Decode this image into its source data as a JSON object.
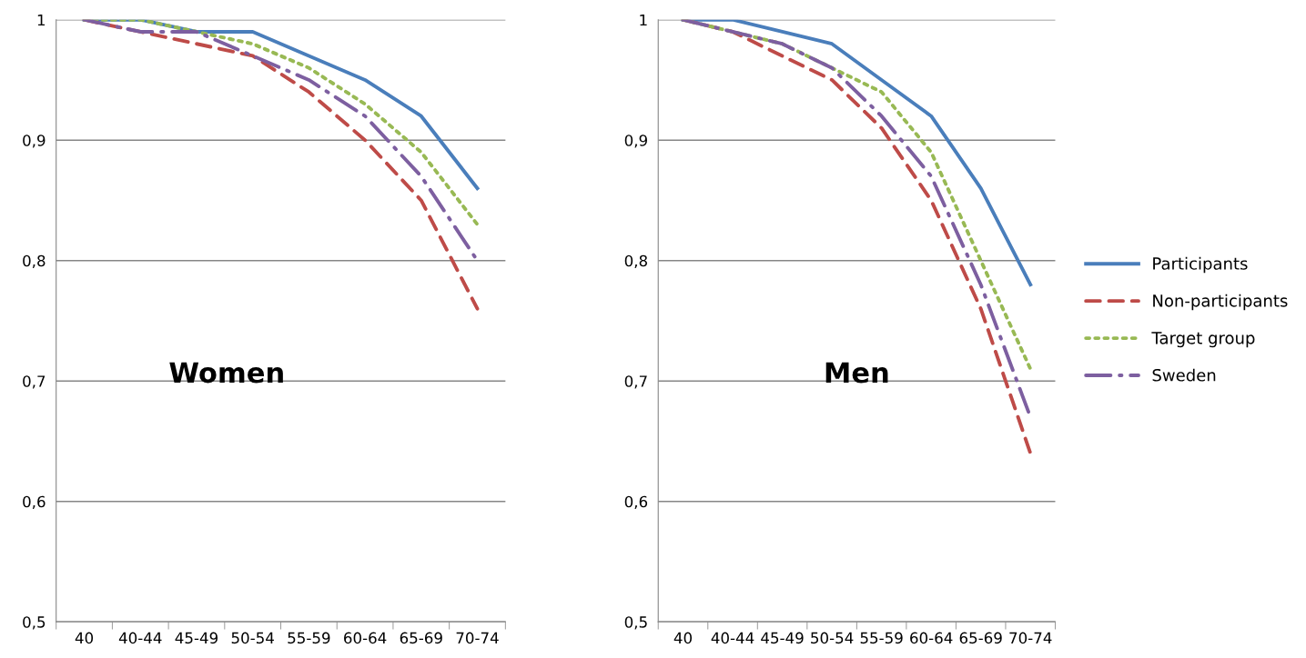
{
  "chart_data": [
    {
      "type": "line",
      "categories": [
        "40",
        "40-44",
        "45-49",
        "50-54",
        "55-59",
        "60-64",
        "65-69",
        "70-74"
      ],
      "ylim": [
        0.5,
        1
      ],
      "yticks": [
        {
          "value": 0.5,
          "label": "0,5"
        },
        {
          "value": 0.6,
          "label": "0,6"
        },
        {
          "value": 0.7,
          "label": "0,7"
        },
        {
          "value": 0.8,
          "label": "0,8"
        },
        {
          "value": 0.9,
          "label": "0,9"
        },
        {
          "value": 1,
          "label": "1"
        }
      ],
      "grid": "y",
      "annotations": [
        "Women"
      ],
      "series": [
        {
          "color": "#4a7ebb",
          "line_style": "solid",
          "values": [
            1,
            1,
            0.99,
            0.99,
            0.97,
            0.95,
            0.92,
            0.86
          ]
        },
        {
          "color": "#be4b48",
          "line_style": "dashed",
          "values": [
            1,
            0.99,
            0.98,
            0.97,
            0.94,
            0.9,
            0.85,
            0.76
          ]
        },
        {
          "color": "#98b954",
          "line_style": "dotted",
          "values": [
            1,
            1,
            0.99,
            0.98,
            0.96,
            0.93,
            0.89,
            0.83
          ]
        },
        {
          "color": "#7d5fa0",
          "line_style": "dashdot",
          "values": [
            1,
            0.99,
            0.99,
            0.97,
            0.95,
            0.92,
            0.87,
            0.8
          ]
        }
      ]
    },
    {
      "type": "line",
      "categories": [
        "40",
        "40-44",
        "45-49",
        "50-54",
        "55-59",
        "60-64",
        "65-69",
        "70-74"
      ],
      "ylim": [
        0.5,
        1
      ],
      "yticks": [
        {
          "value": 0.5,
          "label": "0,5"
        },
        {
          "value": 0.6,
          "label": "0,6"
        },
        {
          "value": 0.7,
          "label": "0,7"
        },
        {
          "value": 0.8,
          "label": "0,8"
        },
        {
          "value": 0.9,
          "label": "0,9"
        },
        {
          "value": 1,
          "label": "1"
        }
      ],
      "grid": "y",
      "legend": "right",
      "annotations": [
        "Men"
      ],
      "series": [
        {
          "name": "Participants",
          "color": "#4a7ebb",
          "line_style": "solid",
          "values": [
            1,
            1,
            0.99,
            0.98,
            0.95,
            0.92,
            0.86,
            0.78
          ]
        },
        {
          "name": "Non-participants",
          "color": "#be4b48",
          "line_style": "dashed",
          "values": [
            1,
            0.99,
            0.97,
            0.95,
            0.91,
            0.85,
            0.76,
            0.64
          ]
        },
        {
          "name": "Target group",
          "color": "#98b954",
          "line_style": "dotted",
          "values": [
            1,
            0.99,
            0.98,
            0.96,
            0.94,
            0.89,
            0.8,
            0.71
          ]
        },
        {
          "name": "Sweden",
          "color": "#7d5fa0",
          "line_style": "dashdot",
          "values": [
            1,
            0.99,
            0.98,
            0.96,
            0.92,
            0.87,
            0.78,
            0.67
          ]
        }
      ]
    }
  ]
}
